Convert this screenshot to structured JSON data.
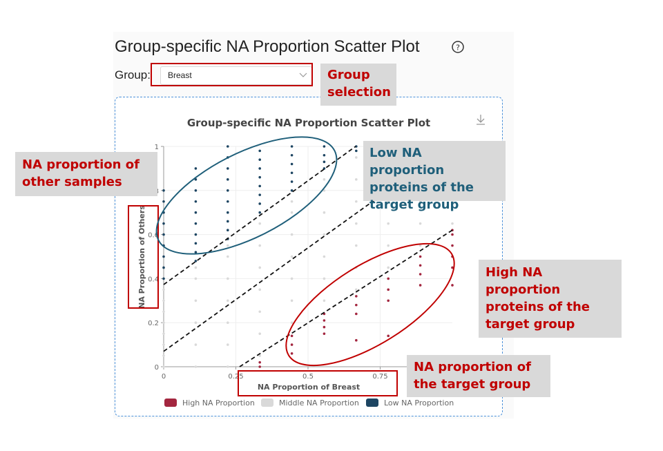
{
  "header": {
    "title": "Group-specific NA Proportion Scatter Plot"
  },
  "group_select": {
    "label": "Group:",
    "value": "Breast"
  },
  "annotations": {
    "group_selection": "Group selection",
    "other_samples": "NA proportion of other samples",
    "low_na": "Low NA proportion proteins of the target group",
    "high_na": "High NA proportion proteins of the target group",
    "target_group": "NA proportion of the target group"
  },
  "chart_data": {
    "type": "scatter",
    "title": "Group-specific NA Proportion Scatter Plot",
    "x_label": "NA Proportion of Breast",
    "y_label": "NA Proportion of Others",
    "xlim": [
      0,
      1
    ],
    "ylim": [
      0,
      1
    ],
    "xticks": [
      0,
      0.25,
      0.5,
      0.75
    ],
    "yticks": [
      0,
      0.2,
      0.4,
      0.6,
      0.8,
      1
    ],
    "grid": true,
    "legend": "bottom",
    "series": [
      {
        "name": "High NA Proportion",
        "color": "#a3263f",
        "x": [
          0.333,
          0.333,
          0.444,
          0.444,
          0.444,
          0.556,
          0.556,
          0.556,
          0.556,
          0.667,
          0.667,
          0.667,
          0.667,
          0.778,
          0.778,
          0.778,
          0.778,
          0.889,
          0.889,
          0.889,
          0.889,
          1,
          1,
          1,
          1,
          1,
          1
        ],
        "y": [
          0,
          0.02,
          0.06,
          0.1,
          0.14,
          0.15,
          0.18,
          0.21,
          0.24,
          0.12,
          0.24,
          0.28,
          0.32,
          0.14,
          0.3,
          0.35,
          0.4,
          0.37,
          0.42,
          0.46,
          0.5,
          0.37,
          0.45,
          0.5,
          0.55,
          0.6,
          0.62
        ]
      },
      {
        "name": "Middle NA Proportion",
        "color": "#d9d9d9",
        "x": [
          0,
          0,
          0,
          0,
          0,
          0,
          0,
          0,
          0.111,
          0.111,
          0.111,
          0.111,
          0.111,
          0.111,
          0.222,
          0.222,
          0.222,
          0.222,
          0.222,
          0.222,
          0.222,
          0.333,
          0.333,
          0.333,
          0.333,
          0.333,
          0.333,
          0.333,
          0.444,
          0.444,
          0.444,
          0.444,
          0.444,
          0.444,
          0.444,
          0.556,
          0.556,
          0.556,
          0.556,
          0.556,
          0.556,
          0.556,
          0.667,
          0.667,
          0.667,
          0.667,
          0.667,
          0.667,
          0.667,
          0.778,
          0.778,
          0.778,
          0.778,
          0.778,
          0.778,
          0.889,
          0.889,
          0.889,
          0.889,
          0.889,
          1,
          1,
          1,
          1,
          1
        ],
        "y": [
          0,
          0.05,
          0.1,
          0.15,
          0.2,
          0.25,
          0.3,
          0.35,
          0,
          0.1,
          0.2,
          0.3,
          0.4,
          0.45,
          0,
          0.1,
          0.2,
          0.3,
          0.4,
          0.5,
          0.55,
          0.05,
          0.15,
          0.25,
          0.35,
          0.45,
          0.55,
          0.65,
          0.2,
          0.3,
          0.4,
          0.5,
          0.6,
          0.7,
          0.75,
          0.3,
          0.4,
          0.5,
          0.6,
          0.7,
          0.8,
          0.85,
          0.35,
          0.45,
          0.55,
          0.65,
          0.75,
          0.85,
          0.95,
          0.45,
          0.55,
          0.65,
          0.75,
          0.85,
          0.95,
          0.55,
          0.65,
          0.75,
          0.85,
          0.95,
          0.65,
          0.75,
          0.85,
          0.95,
          1
        ]
      },
      {
        "name": "Low NA Proportion",
        "color": "#1d4562",
        "x": [
          0,
          0,
          0,
          0,
          0,
          0,
          0,
          0,
          0,
          0.111,
          0.111,
          0.111,
          0.111,
          0.111,
          0.111,
          0.111,
          0.111,
          0.111,
          0.111,
          0.222,
          0.222,
          0.222,
          0.222,
          0.222,
          0.222,
          0.222,
          0.222,
          0.222,
          0.222,
          0.333,
          0.333,
          0.333,
          0.333,
          0.333,
          0.333,
          0.333,
          0.333,
          0.444,
          0.444,
          0.444,
          0.444,
          0.444,
          0.444,
          0.556,
          0.556,
          0.556,
          0.556,
          0.667,
          0.667
        ],
        "y": [
          0.4,
          0.45,
          0.5,
          0.55,
          0.6,
          0.65,
          0.7,
          0.75,
          0.8,
          0.48,
          0.52,
          0.56,
          0.6,
          0.65,
          0.7,
          0.75,
          0.8,
          0.85,
          0.9,
          0.58,
          0.62,
          0.66,
          0.7,
          0.75,
          0.8,
          0.85,
          0.9,
          0.95,
          1,
          0.7,
          0.74,
          0.78,
          0.82,
          0.86,
          0.9,
          0.94,
          0.98,
          0.8,
          0.84,
          0.88,
          0.92,
          0.96,
          1,
          0.9,
          0.93,
          0.96,
          1,
          0.98,
          1
        ]
      }
    ],
    "reference_lines": [
      {
        "x": [
          0,
          0.665
        ],
        "y": [
          0.373,
          1
        ]
      },
      {
        "x": [
          0,
          0.99
        ],
        "y": [
          0.07,
          1
        ]
      },
      {
        "x": [
          0.263,
          1
        ],
        "y": [
          0,
          0.62
        ]
      }
    ]
  }
}
